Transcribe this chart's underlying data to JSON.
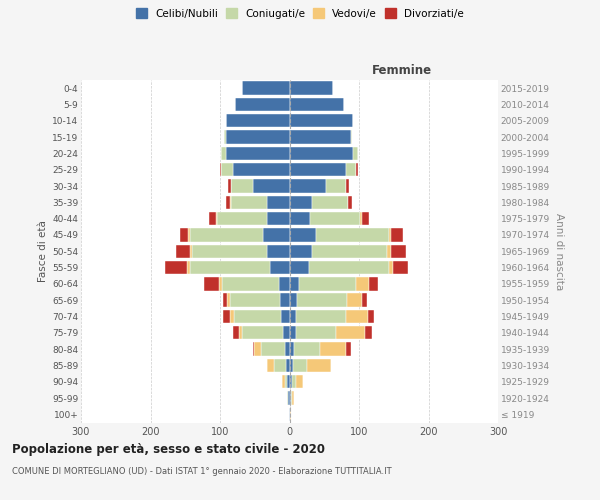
{
  "age_groups": [
    "100+",
    "95-99",
    "90-94",
    "85-89",
    "80-84",
    "75-79",
    "70-74",
    "65-69",
    "60-64",
    "55-59",
    "50-54",
    "45-49",
    "40-44",
    "35-39",
    "30-34",
    "25-29",
    "20-24",
    "15-19",
    "10-14",
    "5-9",
    "0-4"
  ],
  "birth_years": [
    "≤ 1919",
    "1920-1924",
    "1925-1929",
    "1930-1934",
    "1935-1939",
    "1940-1944",
    "1945-1949",
    "1950-1954",
    "1955-1959",
    "1960-1964",
    "1965-1969",
    "1970-1974",
    "1975-1979",
    "1980-1984",
    "1985-1989",
    "1990-1994",
    "1995-1999",
    "2000-2004",
    "2005-2009",
    "2010-2014",
    "2015-2019"
  ],
  "male_celibi": [
    1,
    2,
    3,
    5,
    6,
    10,
    12,
    13,
    15,
    28,
    32,
    38,
    32,
    32,
    52,
    82,
    92,
    92,
    92,
    78,
    68
  ],
  "male_coniugati": [
    0,
    1,
    4,
    18,
    35,
    58,
    68,
    72,
    82,
    115,
    108,
    105,
    72,
    52,
    32,
    16,
    6,
    2,
    0,
    0,
    0
  ],
  "male_vedovi": [
    0,
    1,
    4,
    10,
    10,
    5,
    6,
    5,
    4,
    4,
    3,
    3,
    2,
    1,
    0,
    0,
    0,
    0,
    0,
    0,
    0
  ],
  "male_divorziati": [
    0,
    0,
    0,
    0,
    2,
    9,
    9,
    6,
    22,
    32,
    20,
    12,
    10,
    6,
    4,
    2,
    0,
    0,
    0,
    0,
    0
  ],
  "female_celibi": [
    0,
    2,
    3,
    5,
    6,
    9,
    9,
    11,
    14,
    28,
    32,
    38,
    30,
    32,
    52,
    82,
    92,
    88,
    92,
    78,
    62
  ],
  "female_coniugati": [
    0,
    1,
    6,
    20,
    38,
    58,
    72,
    72,
    82,
    115,
    108,
    105,
    72,
    52,
    30,
    14,
    6,
    2,
    0,
    0,
    0
  ],
  "female_vedovi": [
    2,
    4,
    10,
    35,
    38,
    42,
    32,
    22,
    18,
    6,
    6,
    3,
    2,
    0,
    0,
    0,
    0,
    0,
    0,
    0,
    0
  ],
  "female_divorziati": [
    0,
    0,
    0,
    0,
    6,
    9,
    9,
    6,
    14,
    22,
    22,
    18,
    10,
    6,
    4,
    2,
    0,
    0,
    0,
    0,
    0
  ],
  "colors": {
    "celibi": "#4472a8",
    "coniugati": "#c5d8a8",
    "vedovi": "#f5c878",
    "divorziati": "#c0312b"
  },
  "title": "Popolazione per età, sesso e stato civile - 2020",
  "subtitle": "COMUNE DI MORTEGLIANO (UD) - Dati ISTAT 1° gennaio 2020 - Elaborazione TUTTITALIA.IT",
  "xlabel_right": "Femmine",
  "ylabel_left": "Fasce di età",
  "ylabel_right": "Anni di nascita",
  "xlim": 300,
  "bg_color": "#f5f5f5",
  "plot_bg": "#ffffff",
  "grid_color": "#cccccc"
}
